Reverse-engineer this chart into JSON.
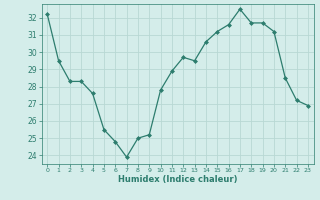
{
  "x": [
    0,
    1,
    2,
    3,
    4,
    5,
    6,
    7,
    8,
    9,
    10,
    11,
    12,
    13,
    14,
    15,
    16,
    17,
    18,
    19,
    20,
    21,
    22,
    23
  ],
  "y": [
    32.2,
    29.5,
    28.3,
    28.3,
    27.6,
    25.5,
    24.8,
    23.9,
    25.0,
    25.2,
    27.8,
    28.9,
    29.7,
    29.5,
    30.6,
    31.2,
    31.6,
    32.5,
    31.7,
    31.7,
    31.2,
    28.5,
    27.2,
    26.9
  ],
  "line_color": "#2d7d6e",
  "marker_color": "#2d7d6e",
  "bg_color": "#d4edea",
  "grid_color": "#b8d8d4",
  "xlabel": "Humidex (Indice chaleur)",
  "ylim": [
    23.5,
    32.8
  ],
  "xlim": [
    -0.5,
    23.5
  ],
  "yticks": [
    24,
    25,
    26,
    27,
    28,
    29,
    30,
    31,
    32
  ],
  "xticks": [
    0,
    1,
    2,
    3,
    4,
    5,
    6,
    7,
    8,
    9,
    10,
    11,
    12,
    13,
    14,
    15,
    16,
    17,
    18,
    19,
    20,
    21,
    22,
    23
  ]
}
